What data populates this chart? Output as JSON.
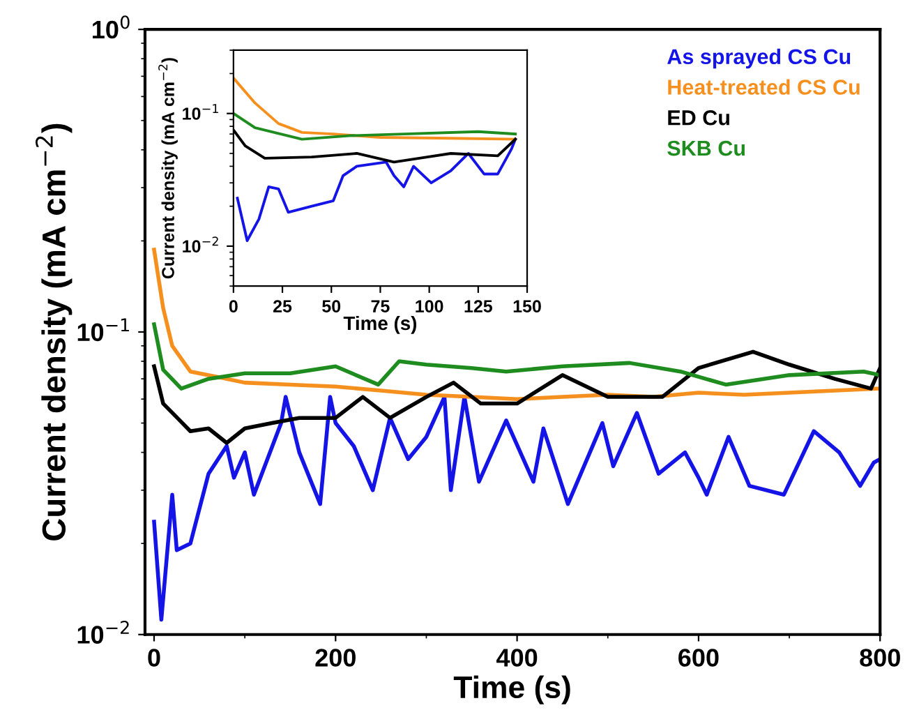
{
  "chart_data": [
    {
      "type": "line",
      "xlabel": "Time (s)",
      "ylabel": "Current density (mA cm$^{−2}$)",
      "log": "y",
      "xlim": [
        -10,
        800
      ],
      "xticks": [
        0,
        200,
        400,
        600,
        800
      ],
      "ylim": [
        0.01,
        1
      ],
      "yticks": [
        {
          "value": 0.01,
          "label": "10$^{−2}$"
        },
        {
          "value": 0.1,
          "label": "10$^{−1}$"
        },
        {
          "value": 1,
          "label": "10$^{0}$"
        }
      ],
      "legend": "top right",
      "grid": false,
      "series": [
        {
          "name": "As sprayed CS Cu",
          "color": "#1414e6",
          "x": [
            0,
            8,
            20,
            25,
            40,
            60,
            80,
            88,
            100,
            110,
            140,
            145,
            160,
            183,
            194,
            200,
            220,
            241,
            260,
            280,
            300,
            320,
            327,
            342,
            358,
            388,
            418,
            429,
            456,
            494,
            506,
            532,
            556,
            585,
            600,
            609,
            633,
            656,
            694,
            727,
            755,
            778,
            793,
            800
          ],
          "values": [
            0.0236,
            0.0112,
            0.029,
            0.019,
            0.02,
            0.034,
            0.042,
            0.033,
            0.04,
            0.029,
            0.05,
            0.061,
            0.04,
            0.027,
            0.061,
            0.05,
            0.042,
            0.03,
            0.052,
            0.038,
            0.045,
            0.061,
            0.03,
            0.061,
            0.032,
            0.051,
            0.032,
            0.048,
            0.027,
            0.05,
            0.036,
            0.054,
            0.034,
            0.04,
            0.033,
            0.029,
            0.045,
            0.031,
            0.029,
            0.047,
            0.04,
            0.031,
            0.037,
            0.038
          ]
        },
        {
          "name": "Heat-treated CS Cu",
          "color": "#f5901e",
          "x": [
            0,
            10,
            20,
            40,
            70,
            100,
            150,
            200,
            250,
            300,
            350,
            400,
            450,
            500,
            550,
            600,
            650,
            700,
            750,
            800
          ],
          "values": [
            0.187,
            0.12,
            0.09,
            0.074,
            0.071,
            0.068,
            0.067,
            0.066,
            0.064,
            0.062,
            0.061,
            0.06,
            0.061,
            0.062,
            0.061,
            0.063,
            0.062,
            0.063,
            0.064,
            0.065
          ]
        },
        {
          "name": "ED Cu",
          "color": "#000000",
          "x": [
            0,
            10,
            40,
            60,
            80,
            100,
            130,
            160,
            200,
            230,
            260,
            300,
            330,
            360,
            400,
            450,
            500,
            560,
            600,
            660,
            700,
            750,
            790,
            800
          ],
          "values": [
            0.077,
            0.058,
            0.047,
            0.048,
            0.043,
            0.048,
            0.05,
            0.052,
            0.052,
            0.061,
            0.052,
            0.061,
            0.068,
            0.058,
            0.058,
            0.072,
            0.061,
            0.061,
            0.076,
            0.086,
            0.078,
            0.07,
            0.065,
            0.076
          ]
        },
        {
          "name": "SKB Cu",
          "color": "#1e8c1e",
          "x": [
            0,
            10,
            30,
            60,
            100,
            150,
            200,
            247,
            270,
            300,
            350,
            388,
            450,
            524,
            580,
            630,
            700,
            782,
            800
          ],
          "values": [
            0.106,
            0.075,
            0.065,
            0.07,
            0.073,
            0.073,
            0.077,
            0.067,
            0.08,
            0.078,
            0.076,
            0.074,
            0.077,
            0.079,
            0.074,
            0.067,
            0.072,
            0.074,
            0.072
          ]
        }
      ]
    },
    {
      "type": "line",
      "xlabel": "Time (s)",
      "ylabel": "Current density (mA cm$^{−2}$)",
      "log": "y",
      "xlim": [
        0,
        150
      ],
      "xticks": [
        0,
        25,
        50,
        75,
        100,
        125,
        150
      ],
      "ylim": [
        0.005,
        0.3
      ],
      "yticks": [
        {
          "value": 0.01,
          "label": "10$^{−2}$"
        },
        {
          "value": 0.1,
          "label": "10$^{−1}$"
        }
      ],
      "grid": false,
      "series": [
        {
          "color": "#1414e6",
          "x": [
            2,
            7,
            13,
            18,
            23,
            28,
            40,
            51,
            56,
            63,
            78,
            82,
            87,
            92,
            101,
            111,
            120,
            128,
            135,
            142,
            144
          ],
          "values": [
            0.023,
            0.011,
            0.016,
            0.028,
            0.027,
            0.018,
            0.02,
            0.022,
            0.034,
            0.04,
            0.043,
            0.034,
            0.028,
            0.04,
            0.03,
            0.037,
            0.05,
            0.035,
            0.035,
            0.054,
            0.064
          ]
        },
        {
          "color": "#f5901e",
          "x": [
            0,
            11,
            23,
            35,
            51,
            75,
            111,
            144
          ],
          "values": [
            0.185,
            0.12,
            0.084,
            0.072,
            0.07,
            0.066,
            0.065,
            0.064
          ]
        },
        {
          "color": "#000000",
          "x": [
            0,
            6,
            16,
            40,
            63,
            82,
            99,
            111,
            135,
            144
          ],
          "values": [
            0.075,
            0.057,
            0.046,
            0.047,
            0.05,
            0.043,
            0.047,
            0.05,
            0.048,
            0.064
          ]
        },
        {
          "color": "#1e8c1e",
          "x": [
            0,
            11,
            35,
            59,
            87,
            125,
            144
          ],
          "values": [
            0.1,
            0.078,
            0.064,
            0.068,
            0.07,
            0.073,
            0.07
          ]
        }
      ]
    }
  ]
}
